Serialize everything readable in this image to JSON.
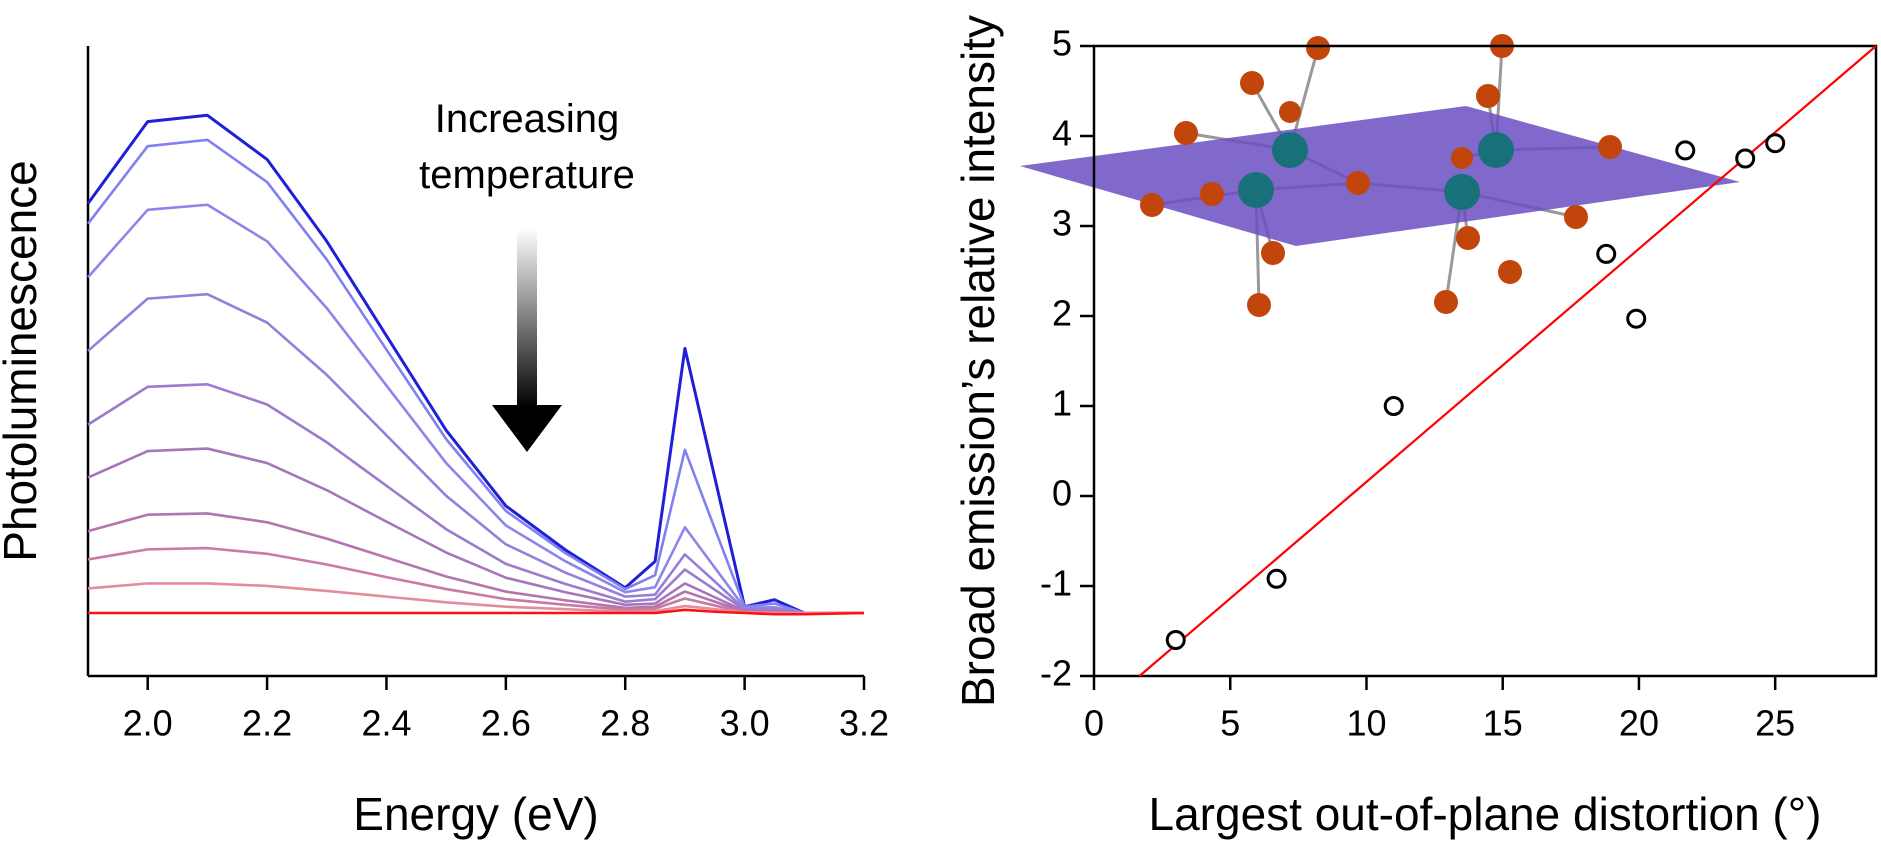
{
  "chart_data": [
    {
      "type": "line",
      "x_label": "Energy (eV)",
      "y_label": "Photoluminescence",
      "annotation": [
        "Increasing",
        "temperature"
      ],
      "x": [
        1.9,
        2.0,
        2.1,
        2.2,
        2.3,
        2.4,
        2.5,
        2.6,
        2.7,
        2.8,
        2.85,
        2.9,
        2.95,
        3.0,
        3.05,
        3.1,
        3.2
      ],
      "xlim": [
        1.9,
        3.2
      ],
      "xticks": [
        {
          "value": 2,
          "label": "2.0"
        },
        2.2,
        2.4,
        2.6,
        2.8,
        {
          "value": 3,
          "label": "3.0"
        },
        3.2
      ],
      "ylim": [
        0,
        100
      ],
      "series": [
        {
          "color": "#1f1fd8",
          "values": [
            75,
            88,
            89,
            82,
            69,
            54,
            39,
            27,
            20,
            14,
            18.2,
            52,
            31.5,
            11,
            12.1,
            10,
            10
          ]
        },
        {
          "color": "#8080f0",
          "values": [
            71.8,
            84.1,
            85.1,
            78.4,
            66.1,
            51.8,
            37.6,
            26.2,
            19.5,
            13.8,
            16.0,
            35.9,
            23.4,
            11,
            11.5,
            10,
            10
          ]
        },
        {
          "color": "#8c86ea",
          "values": [
            63.3,
            74,
            74.8,
            69,
            58.4,
            46.1,
            33.8,
            23.9,
            18.2,
            13.3,
            14.1,
            23.6,
            17.2,
            10.8,
            10.9,
            10,
            10
          ]
        },
        {
          "color": "#957fdc",
          "values": [
            51.6,
            59.9,
            60.6,
            56.1,
            47.8,
            38.2,
            28.6,
            20.9,
            16.4,
            12.6,
            12.9,
            19.3,
            15,
            10.6,
            10.6,
            10,
            10
          ]
        },
        {
          "color": "#9c7acc",
          "values": [
            39.9,
            45.9,
            46.3,
            43.1,
            37.1,
            30.2,
            23.3,
            17.8,
            14.6,
            11.8,
            12.2,
            16.9,
            13.7,
            10.5,
            10.4,
            10,
            10
          ]
        },
        {
          "color": "#a676bc",
          "values": [
            31.5,
            35.7,
            36.1,
            33.8,
            29.5,
            24.5,
            19.6,
            15.6,
            13.3,
            11.3,
            11.5,
            14.7,
            12.5,
            10.3,
            10.2,
            10,
            10
          ]
        },
        {
          "color": "#b474ae",
          "values": [
            23,
            25.6,
            25.8,
            24.4,
            21.8,
            18.8,
            15.8,
            13.4,
            12,
            10.8,
            11,
            13.4,
            11.8,
            10.2,
            10.1,
            10,
            10
          ]
        },
        {
          "color": "#c87aa4",
          "values": [
            18.5,
            20.1,
            20.3,
            19.4,
            17.7,
            15.7,
            13.8,
            12.2,
            11.3,
            10.5,
            10.7,
            12.3,
            11.2,
            10.1,
            10.1,
            10,
            10
          ]
        },
        {
          "color": "#e58c9c",
          "values": [
            13.9,
            14.7,
            14.7,
            14.3,
            13.5,
            12.6,
            11.7,
            11,
            10.6,
            10.2,
            10.3,
            11.1,
            10.6,
            10.1,
            10,
            10,
            10
          ]
        },
        {
          "color": "#ff1010",
          "values": [
            10,
            10,
            10,
            10,
            10,
            10,
            10,
            10,
            10,
            10,
            10,
            10.5,
            10.2,
            10,
            9.8,
            9.8,
            10
          ]
        }
      ]
    },
    {
      "type": "scatter",
      "x_label": "Largest out-of-plane distortion (°)",
      "y_label": "Broad emission’s relative intensity",
      "x": [
        3.0,
        6.7,
        11.0,
        18.8,
        19.9,
        21.7,
        23.9,
        25.0
      ],
      "y": [
        -1.6,
        -0.92,
        1.0,
        2.69,
        1.97,
        3.84,
        3.75,
        3.92
      ],
      "marker_color": "#000000",
      "xlim": [
        0,
        28.7
      ],
      "xticks": [
        0,
        5,
        10,
        15,
        20,
        25
      ],
      "ylim": [
        -2,
        5
      ],
      "yticks": [
        -2,
        -1,
        0,
        1,
        2,
        3,
        4,
        5
      ],
      "fit_line": {
        "color": "#ff0000",
        "x": [
          1.67,
          28.7
        ],
        "y": [
          -2,
          5
        ]
      }
    }
  ]
}
